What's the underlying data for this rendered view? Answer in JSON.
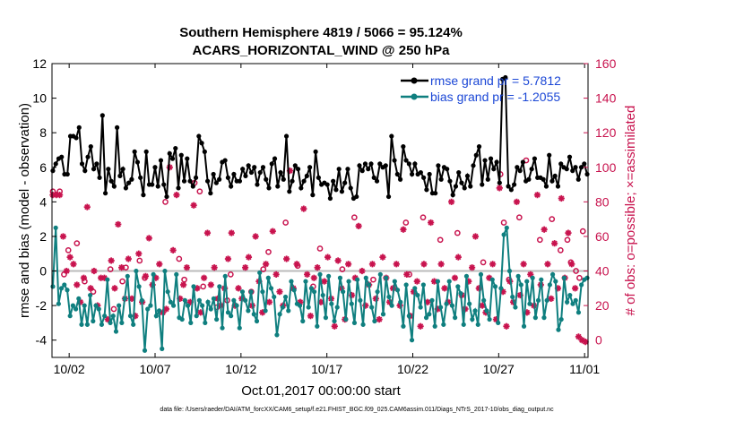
{
  "chart_data": {
    "type": "line",
    "title": "Southern Hemisphere 4819 / 5066 = 95.124%",
    "subtitle": "ACARS_HORIZONTAL_WIND @ 250 hPa",
    "xlabel": "Oct.01,2017 00:00:00 start",
    "ylabel": "rmse and bias (model - observation)",
    "ylabel_right": "# of obs: o=possible; ×=assimilated",
    "footer": "data file: /Users/raeder/DAI/ATM_forcXX/CAM6_setup/f.e21.FHIST_BGC.f09_025.CAM6assim.011/Diags_NTrS_2017-10/obs_diag_output.nc",
    "x_ticks": [
      "10/02",
      "10/07",
      "10/12",
      "10/17",
      "10/22",
      "10/27",
      "11/01"
    ],
    "x_tick_days": [
      2,
      7,
      12,
      17,
      22,
      27,
      32
    ],
    "xlim": [
      1.0,
      32.2
    ],
    "ylim": [
      -5,
      12
    ],
    "y_ticks": [
      -4,
      -2,
      0,
      2,
      4,
      6,
      8,
      10,
      12
    ],
    "ylim_right": [
      -10,
      160
    ],
    "y_ticks_right": [
      0,
      20,
      40,
      60,
      80,
      100,
      120,
      140,
      160
    ],
    "zero_line": 0,
    "legend_position": "top-right",
    "colors": {
      "rmse": "#000000",
      "bias": "#0f7f7f",
      "obs": "#c8134e",
      "legend_text": "#1b47d6",
      "zero": "#bbbbbb"
    },
    "series": [
      {
        "name": "rmse grand pr = 5.7812",
        "axis": "left",
        "values": [
          5.8,
          6.2,
          6.5,
          6.6,
          5.6,
          5.6,
          7.8,
          7.8,
          7.7,
          8.3,
          6.2,
          5.8,
          6.6,
          7.2,
          5.9,
          6.2,
          5.4,
          9.0,
          4.5,
          5.9,
          5.2,
          4.9,
          8.3,
          5.5,
          5.9,
          4.8,
          5.1,
          5.3,
          6.9,
          6.3,
          5.4,
          4.4,
          6.9,
          5.0,
          5.0,
          6.0,
          4.9,
          6.4,
          5.0,
          4.3,
          6.8,
          6.5,
          7.1,
          4.8,
          6.7,
          5.2,
          6.5,
          5.2,
          4.9,
          5.4,
          7.8,
          7.4,
          6.9,
          5.2,
          4.5,
          5.6,
          5.1,
          5.3,
          6.3,
          6.4,
          5.4,
          4.9,
          5.6,
          5.2,
          5.2,
          5.9,
          5.5,
          6.1,
          5.7,
          6.0,
          5.0,
          5.7,
          6.0,
          5.3,
          4.8,
          6.2,
          6.5,
          4.9,
          5.7,
          5.3,
          7.8,
          4.6,
          5.2,
          6.1,
          5.9,
          4.8,
          5.2,
          5.5,
          6.0,
          4.4,
          6.9,
          5.4,
          5.0,
          5.1,
          5.0,
          4.2,
          5.2,
          4.7,
          5.9,
          4.6,
          5.1,
          5.9,
          4.8,
          4.2,
          4.3,
          6.1,
          5.8,
          6.2,
          5.9,
          6.2,
          5.4,
          5.2,
          6.2,
          6.0,
          6.1,
          4.3,
          7.8,
          6.4,
          5.6,
          5.3,
          7.2,
          6.4,
          6.2,
          5.6,
          6.2,
          5.6,
          5.7,
          5.4,
          4.7,
          5.6,
          4.5,
          4.5,
          6.1,
          5.3,
          6.0,
          5.9,
          5.2,
          4.4,
          4.9,
          5.7,
          5.1,
          4.8,
          5.5,
          4.9,
          6.1,
          6.7,
          7.2,
          5.0,
          6.4,
          5.3,
          6.5,
          5.9,
          6.3,
          5.1,
          11.1,
          11.2,
          4.9,
          4.7,
          5.0,
          6.0,
          5.8,
          6.3,
          5.2,
          5.3,
          5.9,
          6.5,
          5.4,
          5.4,
          5.3,
          4.9,
          6.7,
          5.2,
          5.5,
          4.9,
          6.2,
          6.0,
          5.9,
          6.6,
          5.8,
          6.0,
          5.3,
          6.0,
          6.2,
          5.6
        ]
      },
      {
        "name": "bias grand pr = -1.2055",
        "axis": "left",
        "values": [
          -0.9,
          2.5,
          -1.9,
          -1.0,
          -0.8,
          -1.1,
          -2.6,
          -2.0,
          -2.2,
          -1.6,
          -3.1,
          -2.0,
          -3.1,
          -1.4,
          -2.9,
          -2.0,
          -2.2,
          -3.1,
          -2.6,
          -0.5,
          -3.0,
          -2.6,
          -3.5,
          -2.0,
          -3.0,
          -1.6,
          -0.3,
          -2.6,
          -3.1,
          0.0,
          -0.9,
          -1.7,
          -4.6,
          -2.2,
          -2.0,
          -0.2,
          -2.6,
          -2.3,
          -4.5,
          0.0,
          -1.2,
          -1.8,
          -2.0,
          -0.2,
          -2.7,
          -2.8,
          -1.7,
          -2.0,
          -3.0,
          -0.9,
          -2.6,
          -1.7,
          -2.0,
          -3.0,
          -1.8,
          -2.2,
          -1.6,
          -2.8,
          -0.9,
          -3.3,
          -0.3,
          -2.4,
          -2.6,
          -1.7,
          -2.0,
          -3.3,
          -1.2,
          -1.7,
          -2.3,
          -1.2,
          -2.5,
          -2.9,
          -0.1,
          -1.2,
          -2.3,
          -0.4,
          -1.0,
          -1.5,
          -3.7,
          -2.5,
          -2.1,
          -1.5,
          -2.3,
          -0.6,
          -1.1,
          -1.9,
          -2.0,
          -2.9,
          -0.6,
          -2.1,
          -1.0,
          -1.2,
          -3.2,
          -0.2,
          -1.4,
          -2.7,
          -0.3,
          -1.9,
          -2.9,
          -2.1,
          -0.4,
          -1.2,
          -2.8,
          -0.6,
          -1.9,
          -3.0,
          -0.5,
          -1.7,
          -3.1,
          -0.4,
          -0.8,
          -2.1,
          -2.9,
          -1.2,
          -0.2,
          -2.5,
          -0.4,
          -1.5,
          -2.0,
          -0.6,
          -1.1,
          -1.8,
          -3.2,
          -0.8,
          -2.6,
          -4.0,
          -1.0,
          -1.4,
          -2.1,
          -0.8,
          -2.7,
          -2.5,
          -1.7,
          -3.2,
          -0.6,
          -2.1,
          -3.1,
          -1.9,
          -0.6,
          -2.0,
          -2.7,
          -0.9,
          -1.3,
          -3.1,
          -0.3,
          -1.9,
          -2.8,
          -2.3,
          -3.1,
          -0.2,
          -1.7,
          -2.3,
          -2.8,
          -0.5,
          -0.9,
          -3.0,
          -1.0,
          2.1,
          2.5,
          0.0,
          -1.5,
          -2.1,
          -0.3,
          -0.8,
          -3.2,
          -0.6,
          -1.9,
          -0.4,
          -2.7,
          -1.7,
          -0.5,
          -2.7,
          -1.7,
          -0.8,
          -0.2,
          -0.6,
          -3.4,
          -2.8,
          -0.4,
          -1.8,
          -1.4,
          -1.9,
          -1.7,
          -2.4,
          -0.8,
          -0.5,
          -0.4
        ]
      }
    ],
    "obs_possible": {
      "marker": "o",
      "axis": "right",
      "points": [
        [
          1.05,
          86
        ],
        [
          1.45,
          86
        ],
        [
          1.95,
          52
        ],
        [
          2.45,
          56
        ],
        [
          3.4,
          28
        ],
        [
          4.6,
          18
        ],
        [
          5.1,
          34
        ],
        [
          6.1,
          46
        ],
        [
          7.6,
          80
        ],
        [
          8.4,
          47
        ],
        [
          9.3,
          91
        ],
        [
          9.6,
          86
        ],
        [
          10.6,
          19
        ],
        [
          11.2,
          23
        ],
        [
          12.6,
          28
        ],
        [
          13.6,
          51
        ],
        [
          14.6,
          68
        ],
        [
          16.6,
          53
        ],
        [
          18.6,
          71
        ],
        [
          21.6,
          68
        ],
        [
          22.6,
          71
        ],
        [
          27.1,
          96
        ],
        [
          27.3,
          68
        ],
        [
          28.6,
          104
        ],
        [
          30.1,
          70
        ],
        [
          31.2,
          45
        ],
        [
          31.5,
          40
        ],
        [
          31.7,
          36
        ],
        [
          28.2,
          71
        ],
        [
          26.1,
          45
        ],
        [
          27.6,
          35
        ],
        [
          23.6,
          58
        ],
        [
          24.6,
          62
        ],
        [
          21.8,
          38
        ],
        [
          19.7,
          35
        ],
        [
          17.9,
          41
        ],
        [
          16.2,
          31
        ],
        [
          15.3,
          43
        ],
        [
          13.3,
          41
        ],
        [
          11.4,
          38
        ],
        [
          9.8,
          31
        ],
        [
          8.7,
          35
        ],
        [
          6.4,
          36
        ],
        [
          5.3,
          42
        ],
        [
          4.4,
          41
        ],
        [
          1.7,
          38
        ],
        [
          2.9,
          34
        ],
        [
          30.6,
          52
        ],
        [
          29.4,
          58
        ],
        [
          31.9,
          63
        ],
        [
          31.0,
          58
        ]
      ]
    },
    "obs_assimilated": {
      "marker": "*",
      "axis": "right",
      "points": [
        [
          1.05,
          84
        ],
        [
          1.25,
          84
        ],
        [
          1.45,
          84
        ],
        [
          1.65,
          60
        ],
        [
          1.85,
          40
        ],
        [
          2.05,
          48
        ],
        [
          2.25,
          44
        ],
        [
          2.45,
          32
        ],
        [
          2.65,
          22
        ],
        [
          2.85,
          36
        ],
        [
          3.05,
          77
        ],
        [
          3.25,
          30
        ],
        [
          3.45,
          40
        ],
        [
          3.65,
          20
        ],
        [
          3.85,
          36
        ],
        [
          4.05,
          36
        ],
        [
          4.25,
          12
        ],
        [
          4.45,
          46
        ],
        [
          4.65,
          30
        ],
        [
          4.85,
          67
        ],
        [
          5.05,
          42
        ],
        [
          5.25,
          24
        ],
        [
          5.45,
          47
        ],
        [
          5.65,
          24
        ],
        [
          5.85,
          14
        ],
        [
          6.05,
          50
        ],
        [
          6.25,
          22
        ],
        [
          6.45,
          37
        ],
        [
          6.65,
          59
        ],
        [
          6.85,
          32
        ],
        [
          7.05,
          36
        ],
        [
          7.25,
          44
        ],
        [
          7.45,
          16
        ],
        [
          7.65,
          18
        ],
        [
          7.85,
          100
        ],
        [
          8.05,
          52
        ],
        [
          8.25,
          84
        ],
        [
          8.45,
          24
        ],
        [
          8.65,
          32
        ],
        [
          8.85,
          42
        ],
        [
          9.05,
          22
        ],
        [
          9.25,
          78
        ],
        [
          9.45,
          30
        ],
        [
          9.65,
          16
        ],
        [
          9.85,
          36
        ],
        [
          10.05,
          62
        ],
        [
          10.25,
          32
        ],
        [
          10.45,
          42
        ],
        [
          10.65,
          24
        ],
        [
          10.85,
          20
        ],
        [
          11.05,
          30
        ],
        [
          11.25,
          47
        ],
        [
          11.45,
          62
        ],
        [
          11.65,
          20
        ],
        [
          11.85,
          30
        ],
        [
          12.05,
          24
        ],
        [
          12.25,
          42
        ],
        [
          12.45,
          48
        ],
        [
          12.65,
          20
        ],
        [
          12.85,
          60
        ],
        [
          13.05,
          34
        ],
        [
          13.25,
          16
        ],
        [
          13.45,
          44
        ],
        [
          13.65,
          22
        ],
        [
          13.85,
          63
        ],
        [
          14.05,
          38
        ],
        [
          14.25,
          28
        ],
        [
          14.45,
          20
        ],
        [
          14.65,
          47
        ],
        [
          14.85,
          98
        ],
        [
          15.05,
          30
        ],
        [
          15.25,
          44
        ],
        [
          15.45,
          22
        ],
        [
          15.65,
          76
        ],
        [
          15.85,
          38
        ],
        [
          16.05,
          14
        ],
        [
          16.25,
          36
        ],
        [
          16.45,
          42
        ],
        [
          16.65,
          22
        ],
        [
          16.85,
          34
        ],
        [
          17.05,
          48
        ],
        [
          17.25,
          24
        ],
        [
          17.45,
          8
        ],
        [
          17.65,
          46
        ],
        [
          17.85,
          30
        ],
        [
          18.05,
          12
        ],
        [
          18.25,
          44
        ],
        [
          18.45,
          26
        ],
        [
          18.65,
          36
        ],
        [
          18.85,
          66
        ],
        [
          19.05,
          40
        ],
        [
          19.25,
          20
        ],
        [
          19.45,
          32
        ],
        [
          19.65,
          44
        ],
        [
          19.85,
          24
        ],
        [
          20.05,
          12
        ],
        [
          20.25,
          48
        ],
        [
          20.45,
          36
        ],
        [
          20.65,
          22
        ],
        [
          20.85,
          30
        ],
        [
          21.05,
          44
        ],
        [
          21.25,
          20
        ],
        [
          21.45,
          64
        ],
        [
          21.65,
          38
        ],
        [
          21.85,
          14
        ],
        [
          22.05,
          28
        ],
        [
          22.25,
          34
        ],
        [
          22.45,
          8
        ],
        [
          22.65,
          44
        ],
        [
          22.85,
          22
        ],
        [
          23.05,
          68
        ],
        [
          23.25,
          34
        ],
        [
          23.45,
          18
        ],
        [
          23.65,
          44
        ],
        [
          23.85,
          30
        ],
        [
          24.05,
          22
        ],
        [
          24.25,
          80
        ],
        [
          24.45,
          36
        ],
        [
          24.65,
          48
        ],
        [
          24.85,
          26
        ],
        [
          25.05,
          18
        ],
        [
          25.25,
          34
        ],
        [
          25.45,
          42
        ],
        [
          25.65,
          60
        ],
        [
          25.85,
          30
        ],
        [
          26.05,
          20
        ],
        [
          26.25,
          16
        ],
        [
          26.45,
          36
        ],
        [
          26.65,
          44
        ],
        [
          26.85,
          12
        ],
        [
          27.05,
          88
        ],
        [
          27.25,
          28
        ],
        [
          27.45,
          8
        ],
        [
          27.65,
          34
        ],
        [
          27.85,
          22
        ],
        [
          28.05,
          80
        ],
        [
          28.25,
          26
        ],
        [
          28.45,
          44
        ],
        [
          28.65,
          16
        ],
        [
          28.85,
          38
        ],
        [
          29.05,
          20
        ],
        [
          29.25,
          84
        ],
        [
          29.45,
          32
        ],
        [
          29.65,
          64
        ],
        [
          29.85,
          44
        ],
        [
          30.05,
          24
        ],
        [
          30.25,
          56
        ],
        [
          30.45,
          30
        ],
        [
          30.65,
          82
        ],
        [
          30.85,
          36
        ],
        [
          31.05,
          62
        ],
        [
          31.25,
          44
        ],
        [
          31.45,
          30
        ],
        [
          31.65,
          2
        ],
        [
          31.85,
          0
        ],
        [
          32.05,
          -1
        ]
      ]
    },
    "grid": false
  }
}
